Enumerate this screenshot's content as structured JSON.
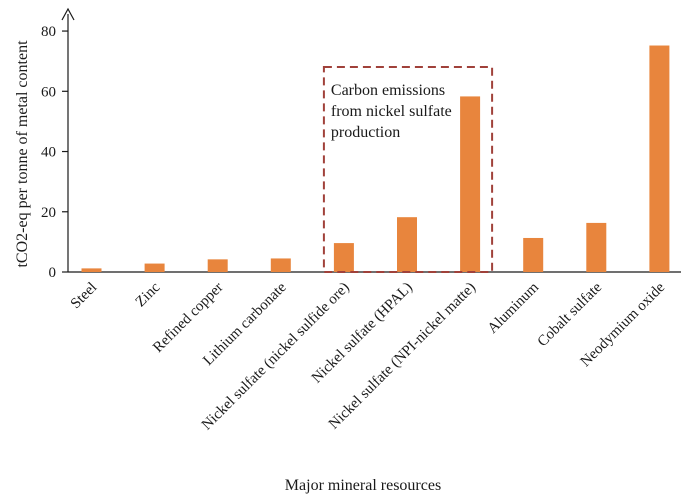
{
  "chart_data": {
    "type": "bar",
    "categories": [
      "Steel",
      "Zinc",
      "Refined copper",
      "Lithium carbonate",
      "Nickel sulfate (nickel sulfide ore)",
      "Nickel sulfate (HPAL)",
      "Nickel sulfate (NPI-nickel matte)",
      "Aluminum",
      "Cobalt sulfate",
      "Neodymium oxide"
    ],
    "values": [
      1.2,
      2.8,
      4.2,
      4.5,
      9.6,
      18.2,
      58.3,
      11.3,
      16.3,
      75.2
    ],
    "xlabel": "Major mineral resources",
    "ylabel": "tCO2-eq per tonne of metal content",
    "ylim": [
      0,
      85
    ],
    "yticks": [
      0,
      20,
      40,
      60,
      80
    ],
    "grid": false,
    "bar_color": "#e8853d",
    "annotation": {
      "lines": [
        "Carbon emissions",
        "from nickel sulfate",
        "production"
      ],
      "border_color": "#a0413a",
      "highlighted_categories": [
        4,
        5,
        6
      ]
    }
  }
}
